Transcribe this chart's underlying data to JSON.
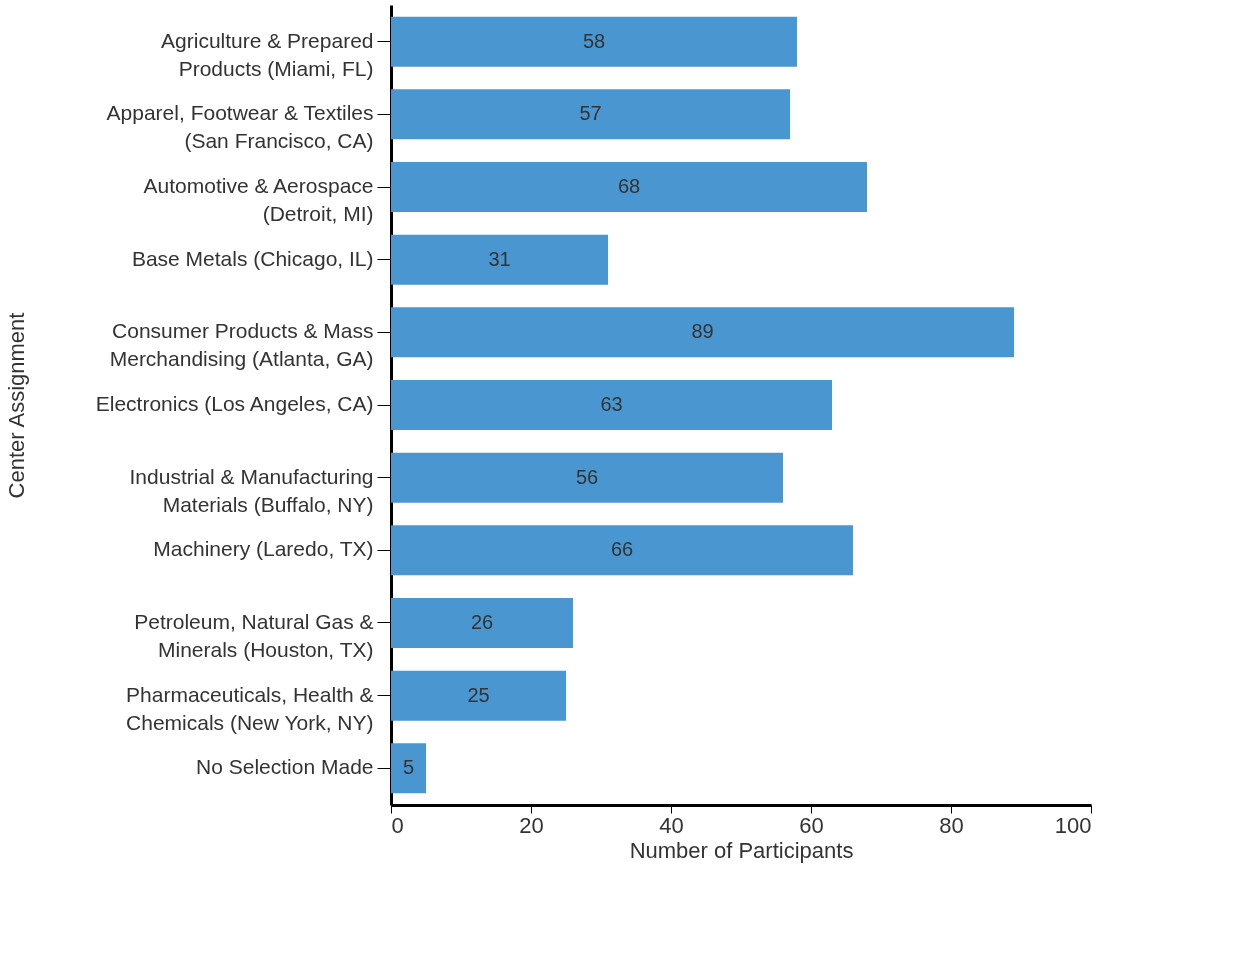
{
  "chart_data": {
    "type": "bar",
    "orientation": "horizontal",
    "xlabel": "Number of Participants",
    "ylabel": "Center Assignment",
    "categories": [
      "Agriculture & Prepared Products (Miami, FL)",
      "Apparel, Footwear & Textiles (San Francisco, CA)",
      "Automotive & Aerospace (Detroit, MI)",
      "Base Metals (Chicago, IL)",
      "Consumer Products & Mass Merchandising (Atlanta, GA)",
      "Electronics (Los Angeles, CA)",
      "Industrial & Manufacturing Materials (Buffalo, NY)",
      "Machinery (Laredo, TX)",
      "Petroleum, Natural Gas & Minerals (Houston, TX)",
      "Pharmaceuticals, Health & Chemicals (New York, NY)",
      "No Selection Made"
    ],
    "values": [
      58,
      57,
      68,
      31,
      89,
      63,
      56,
      66,
      26,
      25,
      5
    ],
    "color": "#4a96d1",
    "xlim": [
      0,
      100
    ],
    "xticks": [
      0,
      20,
      40,
      60,
      80,
      100
    ],
    "grid": false,
    "data_labels": true
  }
}
